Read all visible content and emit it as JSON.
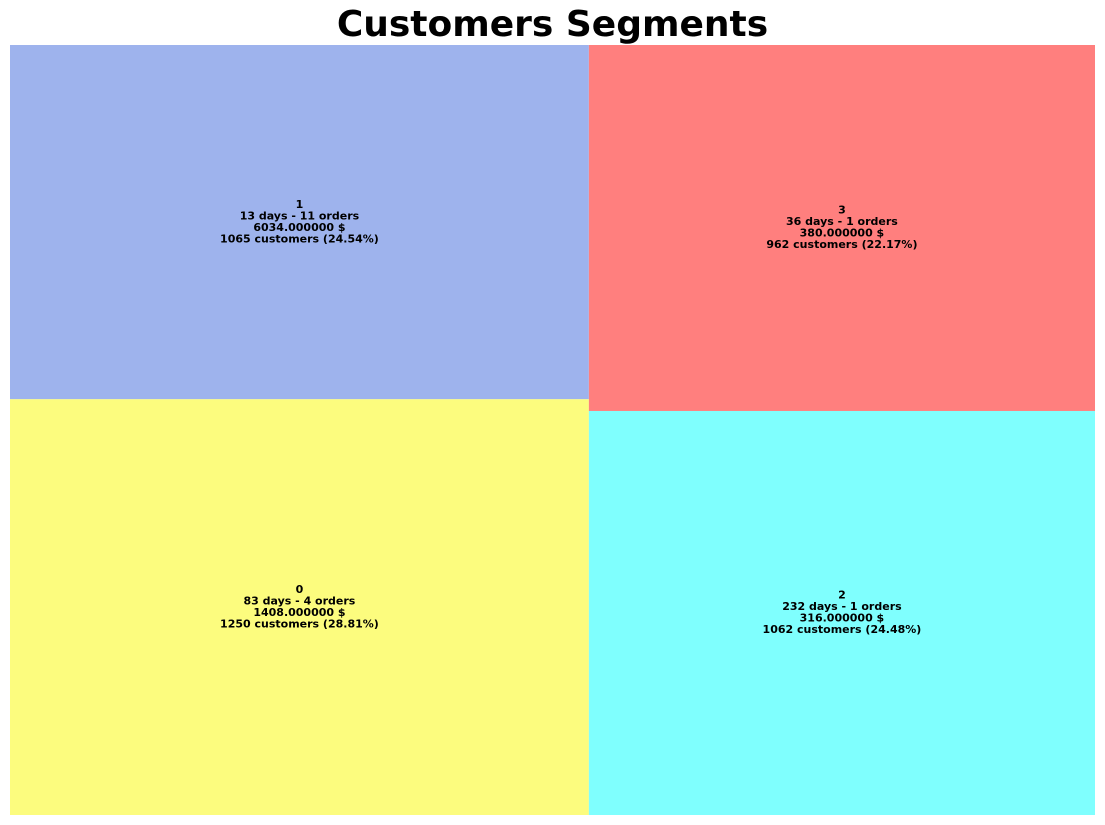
{
  "chart_data": {
    "type": "treemap",
    "title": "Customers Segments",
    "series": [
      {
        "name": "1",
        "lines": [
          "1",
          "13 days - 11 orders",
          "6034.000000 $",
          "1065 customers (24.54%)"
        ],
        "customers": 1065,
        "percent": 24.54,
        "recency_days": 13,
        "orders": 11,
        "monetary": 6034.0,
        "color": "#9EB3ED"
      },
      {
        "name": "0",
        "lines": [
          "0",
          "83 days - 4 orders",
          "1408.000000 $",
          "1250 customers (28.81%)"
        ],
        "customers": 1250,
        "percent": 28.81,
        "recency_days": 83,
        "orders": 4,
        "monetary": 1408.0,
        "color": "#FCFC7E"
      },
      {
        "name": "3",
        "lines": [
          "3",
          "36 days - 1 orders",
          "380.000000 $",
          "962 customers (22.17%)"
        ],
        "customers": 962,
        "percent": 22.17,
        "recency_days": 36,
        "orders": 1,
        "monetary": 380.0,
        "color": "#FF7F7E"
      },
      {
        "name": "2",
        "lines": [
          "2",
          "232 days - 1 orders",
          "316.000000 $",
          "1062 customers (24.48%)"
        ],
        "customers": 1062,
        "percent": 24.48,
        "recency_days": 232,
        "orders": 1,
        "monetary": 316.0,
        "color": "#7FFFFE"
      }
    ]
  }
}
